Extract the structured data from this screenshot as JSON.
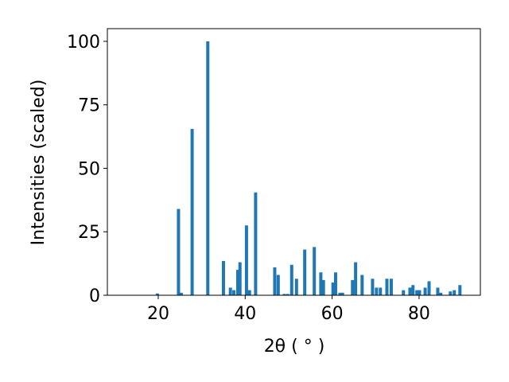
{
  "chart_data": {
    "type": "bar",
    "xlabel": "2θ ( ° )",
    "ylabel": "Intensities (scaled)",
    "x": [
      19.8,
      24.66,
      25.3,
      27.8,
      31.4,
      35.0,
      36.6,
      37.4,
      38.3,
      38.8,
      40.3,
      41.0,
      42.4,
      46.8,
      47.6,
      49.0,
      49.8,
      50.7,
      51.8,
      53.7,
      55.9,
      57.4,
      58.0,
      60.2,
      60.8,
      61.8,
      62.4,
      64.7,
      65.4,
      66.9,
      69.3,
      70.2,
      71.1,
      72.6,
      73.6,
      76.4,
      77.9,
      78.6,
      79.5,
      80.1,
      81.4,
      82.3,
      84.3,
      85.0,
      87.2,
      88.1,
      89.4
    ],
    "values": [
      0.7,
      34,
      1,
      65.5,
      100,
      13.5,
      3,
      2,
      10,
      13,
      27.5,
      2,
      40.5,
      11,
      8,
      0.5,
      0.5,
      12,
      6.5,
      18,
      19,
      9,
      6,
      5,
      9,
      1,
      1,
      6,
      13,
      8,
      6.5,
      3,
      3,
      6.5,
      6.5,
      2,
      3,
      4,
      2,
      2,
      3,
      5.5,
      3,
      1,
      1.5,
      2,
      4
    ],
    "color": "#1f77b4",
    "xlim": [
      8.3,
      94.1
    ],
    "xticks": [
      20,
      40,
      60,
      80
    ],
    "ylim": [
      0,
      105
    ],
    "yticks": [
      0,
      25,
      50,
      75,
      100
    ],
    "grid": false
  }
}
